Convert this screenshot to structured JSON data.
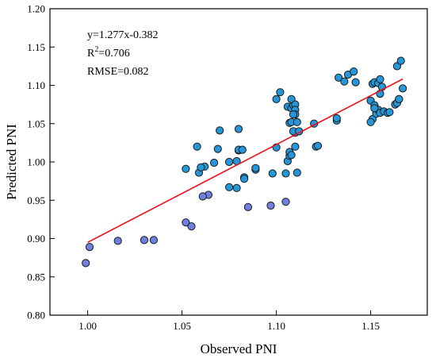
{
  "chart_data": {
    "type": "scatter",
    "title": "",
    "xlabel": "Observed PNI",
    "ylabel": "Predicted PNI",
    "xlim": [
      0.98,
      1.18
    ],
    "ylim": [
      0.8,
      1.2
    ],
    "xticks": [
      "1.00",
      "1.05",
      "1.10",
      "1.15"
    ],
    "yticks": [
      "0.80",
      "0.85",
      "0.90",
      "0.95",
      "1.00",
      "1.05",
      "1.10",
      "1.15",
      "1.20"
    ],
    "grid": false,
    "legend": "none",
    "annotations": {
      "equation": "y=1.277x-0.382",
      "r2_prefix": "R",
      "r2_sup": "2",
      "r2_value": "=0.706",
      "rmse": "RMSE=0.082"
    },
    "fit_line": {
      "slope": 1.277,
      "intercept": -0.382,
      "x_range": [
        1.0,
        1.167
      ],
      "color": "#e8141b"
    },
    "marker_colors": {
      "low": "#6f7fe0",
      "high": "#2596d8",
      "edge": "#1a1a1a"
    },
    "series": [
      {
        "x": [
          0.999,
          1.001,
          1.016,
          1.03,
          1.035,
          1.052,
          1.055,
          1.052,
          1.059,
          1.062,
          1.064,
          1.061,
          1.058,
          1.06,
          1.067,
          1.069,
          1.07,
          1.075,
          1.079,
          1.079,
          1.08,
          1.08,
          1.075,
          1.08,
          1.083,
          1.083,
          1.085,
          1.082,
          1.089,
          1.089,
          1.097,
          1.098,
          1.1,
          1.1,
          1.102,
          1.105,
          1.105,
          1.106,
          1.107,
          1.107,
          1.106,
          1.108,
          1.109,
          1.108,
          1.11,
          1.11,
          1.107,
          1.108,
          1.11,
          1.109,
          1.111,
          1.11,
          1.109,
          1.11,
          1.112,
          1.108,
          1.111,
          1.12,
          1.121,
          1.122,
          1.132,
          1.132,
          1.133,
          1.136,
          1.138,
          1.141,
          1.142,
          1.15,
          1.151,
          1.152,
          1.152,
          1.153,
          1.151,
          1.152,
          1.154,
          1.155,
          1.156,
          1.155,
          1.154,
          1.155,
          1.157,
          1.159,
          1.16,
          1.163,
          1.164,
          1.165,
          1.164,
          1.166,
          1.167,
          1.165,
          1.15,
          1.152
        ],
        "y": [
          0.868,
          0.889,
          0.897,
          0.898,
          0.898,
          0.921,
          0.916,
          0.991,
          0.986,
          0.994,
          0.957,
          0.955,
          1.02,
          0.993,
          0.999,
          1.017,
          1.041,
          0.967,
          1.001,
          0.966,
          1.015,
          1.043,
          1.0,
          1.016,
          0.98,
          0.978,
          0.941,
          1.016,
          0.99,
          0.992,
          0.943,
          0.985,
          1.019,
          1.082,
          1.091,
          0.948,
          0.985,
          1.001,
          1.008,
          1.013,
          1.072,
          1.07,
          1.074,
          1.082,
          1.075,
          1.068,
          1.051,
          1.052,
          1.062,
          1.062,
          1.052,
          1.038,
          1.04,
          1.02,
          1.04,
          1.009,
          0.986,
          1.05,
          1.02,
          1.021,
          1.054,
          1.057,
          1.11,
          1.105,
          1.114,
          1.118,
          1.104,
          1.08,
          1.056,
          1.072,
          1.074,
          1.063,
          1.102,
          1.104,
          1.103,
          1.108,
          1.098,
          1.089,
          1.068,
          1.064,
          1.066,
          1.064,
          1.065,
          1.075,
          1.077,
          1.082,
          1.125,
          1.132,
          1.096,
          1.082,
          1.052,
          1.07
        ]
      }
    ]
  }
}
